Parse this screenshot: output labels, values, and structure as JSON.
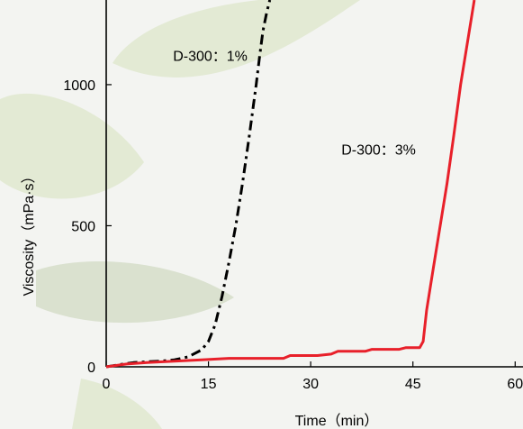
{
  "chart_data": {
    "type": "line",
    "xlabel": "Time（min）",
    "ylabel": "Viscosity（mPa·s）",
    "xlim": [
      0,
      63
    ],
    "ylim": [
      0,
      1300
    ],
    "xticks": [
      0,
      15,
      30,
      45,
      60
    ],
    "yticks": [
      0,
      500,
      1000
    ],
    "grid": false,
    "series": [
      {
        "name": "D-300：1%",
        "color": "#000000",
        "dash": "dash-dot",
        "x": [
          0,
          2,
          4,
          6,
          8,
          10,
          12,
          14,
          15,
          16,
          17,
          18,
          19,
          20,
          21,
          22,
          22.5,
          23,
          23.5,
          24
        ],
        "y": [
          0,
          8,
          15,
          18,
          20,
          25,
          35,
          60,
          90,
          150,
          250,
          370,
          500,
          650,
          820,
          1000,
          1100,
          1190,
          1250,
          1300
        ]
      },
      {
        "name": "D-300：3%",
        "color": "#e8202a",
        "dash": "solid",
        "x": [
          0,
          3,
          6,
          10,
          14,
          18,
          22,
          26,
          27,
          30,
          31,
          33,
          34,
          38,
          39,
          43,
          44,
          46,
          46.5,
          47,
          48,
          49,
          50,
          51,
          52,
          53,
          54
        ],
        "y": [
          0,
          10,
          15,
          20,
          25,
          30,
          30,
          30,
          40,
          40,
          40,
          45,
          55,
          55,
          62,
          62,
          68,
          68,
          90,
          200,
          350,
          500,
          650,
          820,
          1000,
          1150,
          1300
        ]
      }
    ],
    "annotations": [
      {
        "text": "D-300：1%",
        "x": 9.8,
        "y": 1085
      },
      {
        "text": "D-300：3%",
        "x": 34.5,
        "y": 753
      }
    ]
  }
}
